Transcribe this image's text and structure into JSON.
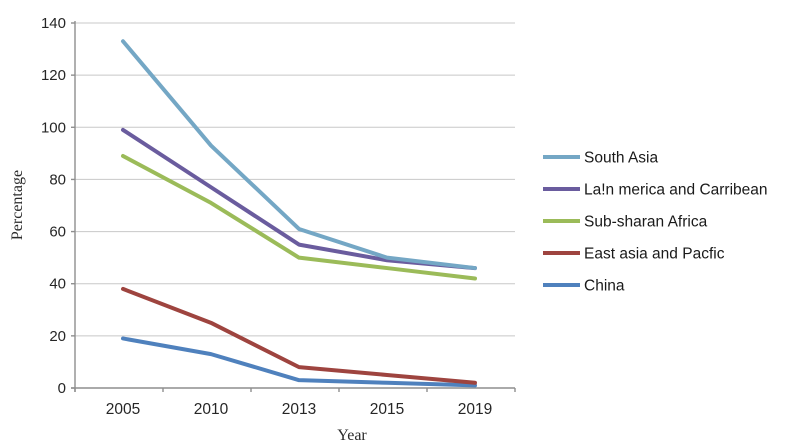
{
  "chart_data": {
    "type": "line",
    "title": "",
    "categories": [
      "2005",
      "2010",
      "2013",
      "2015",
      "2019"
    ],
    "series": [
      {
        "name": "South Asia",
        "color": "#74A7C5",
        "values": [
          133,
          93,
          61,
          50,
          46
        ]
      },
      {
        "name": "La!n merica and Carribean",
        "color": "#6A5C9E",
        "values": [
          99,
          77,
          55,
          49,
          46
        ]
      },
      {
        "name": "Sub-sharan Africa",
        "color": "#9BBB59",
        "values": [
          89,
          71,
          50,
          46,
          42
        ]
      },
      {
        "name": "East asia and Pacfic",
        "color": "#9E443F",
        "values": [
          38,
          25,
          8,
          5,
          2
        ]
      },
      {
        "name": "China",
        "color": "#4F81BD",
        "values": [
          19,
          13,
          3,
          2,
          1
        ]
      }
    ],
    "xlabel": "Year",
    "ylabel": "Percentage",
    "ylim": [
      0,
      140
    ],
    "ytick_step": 20,
    "yticks": [
      0,
      20,
      40,
      60,
      80,
      100,
      120,
      140
    ],
    "grid": true,
    "legend_position": "right",
    "line_width": 4
  },
  "colors": {
    "background": "#FFFFFF",
    "gridline": "#C8C8C8",
    "axis": "#8E8E8E",
    "tick_text": "#262626",
    "legend_text": "#1A1A1A",
    "axis_title_text": "#2B2B2B"
  }
}
